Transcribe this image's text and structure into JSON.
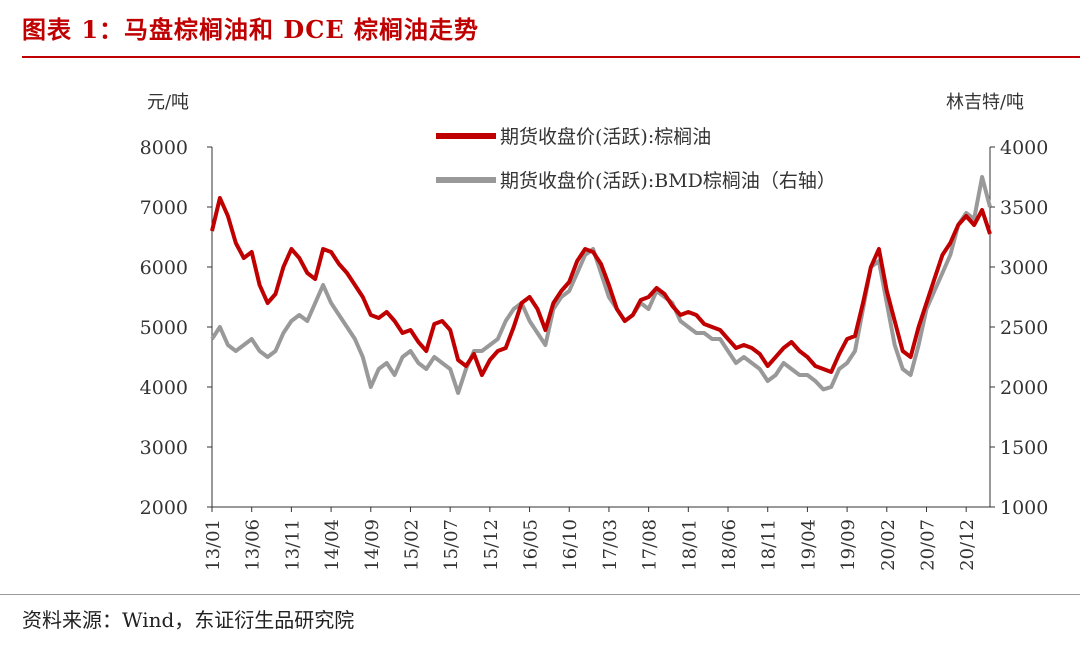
{
  "header": {
    "title": "图表 1：马盘棕榈油和 DCE 棕榈油走势"
  },
  "footer": {
    "source": "资料来源：Wind，东证衍生品研究院"
  },
  "chart_data": {
    "type": "line",
    "left_unit": "元/吨",
    "right_unit": "林吉特/吨",
    "left_ylim": [
      2000,
      8000
    ],
    "right_ylim": [
      1000,
      4000
    ],
    "left_ticks": [
      2000,
      3000,
      4000,
      5000,
      6000,
      7000,
      8000
    ],
    "right_ticks": [
      1000,
      1500,
      2000,
      2500,
      3000,
      3500,
      4000
    ],
    "x_ticks": [
      "13/01",
      "13/06",
      "13/11",
      "14/04",
      "14/09",
      "15/02",
      "15/07",
      "15/12",
      "16/05",
      "16/10",
      "17/03",
      "17/08",
      "18/01",
      "18/06",
      "18/11",
      "19/04",
      "19/09",
      "20/02",
      "20/07",
      "20/12"
    ],
    "x_start": "13/01",
    "x_end": "21/03",
    "legend_position": "top-center",
    "series": [
      {
        "name": "期货收盘价(活跃):棕榈油",
        "axis": "left",
        "color": "#c00000",
        "points": [
          [
            "13/01",
            6600
          ],
          [
            "13/02",
            7150
          ],
          [
            "13/03",
            6850
          ],
          [
            "13/04",
            6400
          ],
          [
            "13/05",
            6150
          ],
          [
            "13/06",
            6250
          ],
          [
            "13/07",
            5700
          ],
          [
            "13/08",
            5400
          ],
          [
            "13/09",
            5550
          ],
          [
            "13/10",
            6000
          ],
          [
            "13/11",
            6300
          ],
          [
            "13/12",
            6150
          ],
          [
            "14/01",
            5900
          ],
          [
            "14/02",
            5800
          ],
          [
            "14/03",
            6300
          ],
          [
            "14/04",
            6250
          ],
          [
            "14/05",
            6050
          ],
          [
            "14/06",
            5900
          ],
          [
            "14/07",
            5700
          ],
          [
            "14/08",
            5500
          ],
          [
            "14/09",
            5200
          ],
          [
            "14/10",
            5150
          ],
          [
            "14/11",
            5250
          ],
          [
            "14/12",
            5100
          ],
          [
            "15/01",
            4900
          ],
          [
            "15/02",
            4950
          ],
          [
            "15/03",
            4750
          ],
          [
            "15/04",
            4600
          ],
          [
            "15/05",
            5050
          ],
          [
            "15/06",
            5100
          ],
          [
            "15/07",
            4950
          ],
          [
            "15/08",
            4450
          ],
          [
            "15/09",
            4350
          ],
          [
            "15/10",
            4550
          ],
          [
            "15/11",
            4200
          ],
          [
            "15/12",
            4450
          ],
          [
            "16/01",
            4600
          ],
          [
            "16/02",
            4650
          ],
          [
            "16/03",
            5000
          ],
          [
            "16/04",
            5400
          ],
          [
            "16/05",
            5500
          ],
          [
            "16/06",
            5300
          ],
          [
            "16/07",
            4950
          ],
          [
            "16/08",
            5400
          ],
          [
            "16/09",
            5600
          ],
          [
            "16/10",
            5750
          ],
          [
            "16/11",
            6100
          ],
          [
            "16/12",
            6300
          ],
          [
            "17/01",
            6250
          ],
          [
            "17/02",
            6050
          ],
          [
            "17/03",
            5700
          ],
          [
            "17/04",
            5300
          ],
          [
            "17/05",
            5100
          ],
          [
            "17/06",
            5200
          ],
          [
            "17/07",
            5450
          ],
          [
            "17/08",
            5500
          ],
          [
            "17/09",
            5650
          ],
          [
            "17/10",
            5550
          ],
          [
            "17/11",
            5350
          ],
          [
            "17/12",
            5200
          ],
          [
            "18/01",
            5250
          ],
          [
            "18/02",
            5200
          ],
          [
            "18/03",
            5050
          ],
          [
            "18/04",
            5000
          ],
          [
            "18/05",
            4950
          ],
          [
            "18/06",
            4800
          ],
          [
            "18/07",
            4650
          ],
          [
            "18/08",
            4700
          ],
          [
            "18/09",
            4650
          ],
          [
            "18/10",
            4550
          ],
          [
            "18/11",
            4350
          ],
          [
            "18/12",
            4500
          ],
          [
            "19/01",
            4650
          ],
          [
            "19/02",
            4750
          ],
          [
            "19/03",
            4600
          ],
          [
            "19/04",
            4500
          ],
          [
            "19/05",
            4350
          ],
          [
            "19/06",
            4300
          ],
          [
            "19/07",
            4250
          ],
          [
            "19/08",
            4550
          ],
          [
            "19/09",
            4800
          ],
          [
            "19/10",
            4850
          ],
          [
            "19/11",
            5400
          ],
          [
            "19/12",
            6000
          ],
          [
            "20/01",
            6300
          ],
          [
            "20/02",
            5600
          ],
          [
            "20/03",
            5100
          ],
          [
            "20/04",
            4600
          ],
          [
            "20/05",
            4500
          ],
          [
            "20/06",
            5000
          ],
          [
            "20/07",
            5400
          ],
          [
            "20/08",
            5800
          ],
          [
            "20/09",
            6200
          ],
          [
            "20/10",
            6400
          ],
          [
            "20/11",
            6700
          ],
          [
            "20/12",
            6850
          ],
          [
            "21/01",
            6700
          ],
          [
            "21/02",
            6950
          ],
          [
            "21/03",
            6550
          ]
        ]
      },
      {
        "name": "期货收盘价(活跃):BMD棕榈油（右轴）",
        "axis": "right",
        "color": "#999999",
        "points": [
          [
            "13/01",
            2400
          ],
          [
            "13/02",
            2500
          ],
          [
            "13/03",
            2350
          ],
          [
            "13/04",
            2300
          ],
          [
            "13/05",
            2350
          ],
          [
            "13/06",
            2400
          ],
          [
            "13/07",
            2300
          ],
          [
            "13/08",
            2250
          ],
          [
            "13/09",
            2300
          ],
          [
            "13/10",
            2450
          ],
          [
            "13/11",
            2550
          ],
          [
            "13/12",
            2600
          ],
          [
            "14/01",
            2550
          ],
          [
            "14/02",
            2700
          ],
          [
            "14/03",
            2850
          ],
          [
            "14/04",
            2700
          ],
          [
            "14/05",
            2600
          ],
          [
            "14/06",
            2500
          ],
          [
            "14/07",
            2400
          ],
          [
            "14/08",
            2250
          ],
          [
            "14/09",
            2000
          ],
          [
            "14/10",
            2150
          ],
          [
            "14/11",
            2200
          ],
          [
            "14/12",
            2100
          ],
          [
            "15/01",
            2250
          ],
          [
            "15/02",
            2300
          ],
          [
            "15/03",
            2200
          ],
          [
            "15/04",
            2150
          ],
          [
            "15/05",
            2250
          ],
          [
            "15/06",
            2200
          ],
          [
            "15/07",
            2150
          ],
          [
            "15/08",
            1950
          ],
          [
            "15/09",
            2150
          ],
          [
            "15/10",
            2300
          ],
          [
            "15/11",
            2300
          ],
          [
            "15/12",
            2350
          ],
          [
            "16/01",
            2400
          ],
          [
            "16/02",
            2550
          ],
          [
            "16/03",
            2650
          ],
          [
            "16/04",
            2700
          ],
          [
            "16/05",
            2550
          ],
          [
            "16/06",
            2450
          ],
          [
            "16/07",
            2350
          ],
          [
            "16/08",
            2650
          ],
          [
            "16/09",
            2750
          ],
          [
            "16/10",
            2800
          ],
          [
            "16/11",
            2950
          ],
          [
            "16/12",
            3100
          ],
          [
            "17/01",
            3150
          ],
          [
            "17/02",
            2950
          ],
          [
            "17/03",
            2750
          ],
          [
            "17/04",
            2650
          ],
          [
            "17/05",
            2550
          ],
          [
            "17/06",
            2600
          ],
          [
            "17/07",
            2700
          ],
          [
            "17/08",
            2650
          ],
          [
            "17/09",
            2800
          ],
          [
            "17/10",
            2750
          ],
          [
            "17/11",
            2700
          ],
          [
            "17/12",
            2550
          ],
          [
            "18/01",
            2500
          ],
          [
            "18/02",
            2450
          ],
          [
            "18/03",
            2450
          ],
          [
            "18/04",
            2400
          ],
          [
            "18/05",
            2400
          ],
          [
            "18/06",
            2300
          ],
          [
            "18/07",
            2200
          ],
          [
            "18/08",
            2250
          ],
          [
            "18/09",
            2200
          ],
          [
            "18/10",
            2150
          ],
          [
            "18/11",
            2050
          ],
          [
            "18/12",
            2100
          ],
          [
            "19/01",
            2200
          ],
          [
            "19/02",
            2150
          ],
          [
            "19/03",
            2100
          ],
          [
            "19/04",
            2100
          ],
          [
            "19/05",
            2050
          ],
          [
            "19/06",
            1980
          ],
          [
            "19/07",
            2000
          ],
          [
            "19/08",
            2150
          ],
          [
            "19/09",
            2200
          ],
          [
            "19/10",
            2300
          ],
          [
            "19/11",
            2650
          ],
          [
            "19/12",
            3000
          ],
          [
            "20/01",
            3050
          ],
          [
            "20/02",
            2700
          ],
          [
            "20/03",
            2350
          ],
          [
            "20/04",
            2150
          ],
          [
            "20/05",
            2100
          ],
          [
            "20/06",
            2350
          ],
          [
            "20/07",
            2650
          ],
          [
            "20/08",
            2800
          ],
          [
            "20/09",
            2950
          ],
          [
            "20/10",
            3100
          ],
          [
            "20/11",
            3350
          ],
          [
            "20/12",
            3450
          ],
          [
            "21/01",
            3400
          ],
          [
            "21/02",
            3750
          ],
          [
            "21/03",
            3500
          ]
        ]
      }
    ]
  }
}
